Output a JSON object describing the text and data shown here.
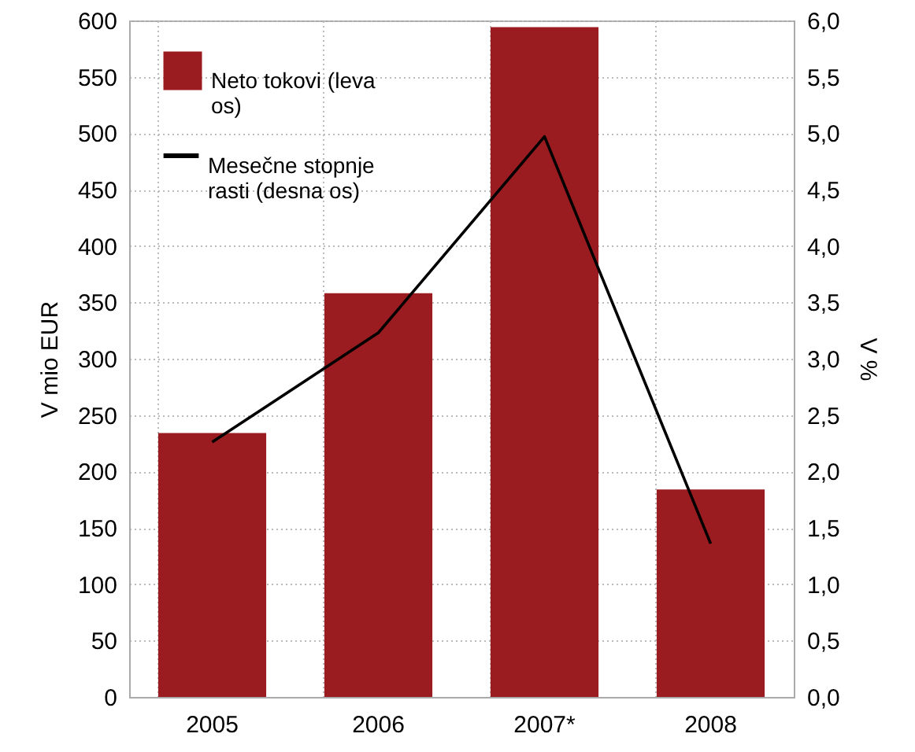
{
  "chart_data": {
    "type": "bar",
    "categories": [
      "2005",
      "2006",
      "2007*",
      "2008"
    ],
    "ylabel": "V mio EUR",
    "y2label": "V %",
    "series": [
      {
        "name": "Neto tokovi (leva os)",
        "color": "#9b1c20",
        "values": [
          234,
          358,
          594,
          184
        ]
      },
      {
        "name": "Mesečne stopnje rasti (desna os)",
        "type": "line",
        "axis": "y2",
        "color": "#000000",
        "values": [
          2.26,
          3.23,
          4.97,
          1.36
        ]
      }
    ],
    "ylim": [
      0,
      600
    ],
    "yticks": [
      0,
      50,
      100,
      150,
      200,
      250,
      300,
      350,
      400,
      450,
      500,
      550,
      600
    ],
    "y2lim": [
      0,
      6
    ],
    "y2ticks": [
      {
        "value": 0,
        "label": "0,0"
      },
      {
        "value": 0.5,
        "label": "0,5"
      },
      {
        "value": 1,
        "label": "1,0"
      },
      {
        "value": 1.5,
        "label": "1,5"
      },
      {
        "value": 2,
        "label": "2,0"
      },
      {
        "value": 2.5,
        "label": "2,5"
      },
      {
        "value": 3,
        "label": "3,0"
      },
      {
        "value": 3.5,
        "label": "3,5"
      },
      {
        "value": 4,
        "label": "4,0"
      },
      {
        "value": 4.5,
        "label": "4,5"
      },
      {
        "value": 5,
        "label": "5,0"
      },
      {
        "value": 5.5,
        "label": "5,5"
      },
      {
        "value": 6,
        "label": "6,0"
      }
    ],
    "grid": true,
    "legend": "top left",
    "marker": "none",
    "line_style": "solid"
  }
}
